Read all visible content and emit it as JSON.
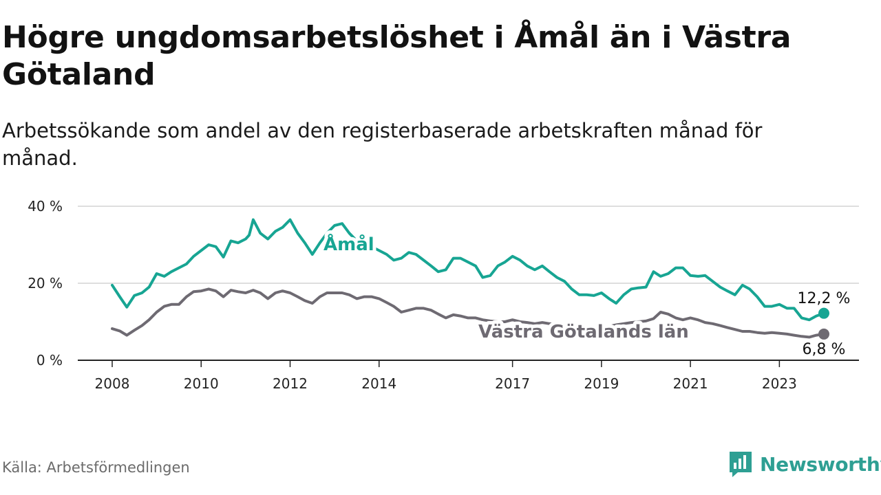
{
  "title": "Högre ungdomsarbetslöshet i Åmål än i Västra Götaland",
  "subtitle": "Arbetssökande som andel av den registerbaserade arbetskraften månad för månad.",
  "source": "Källa: Arbetsförmedlingen",
  "brand": "Newsworthy",
  "colors": {
    "amal": "#17a593",
    "vg": "#6e6a72",
    "grid": "#d4d4d4",
    "axis": "#222222",
    "brand": "#2e9f93"
  },
  "chart_data": {
    "type": "line",
    "title": "Högre ungdomsarbetslöshet i Åmål än i Västra Götaland",
    "xlabel": "",
    "ylabel": "",
    "xlim": [
      2007.9,
      2024.1
    ],
    "ylim": [
      0,
      40
    ],
    "y_ticks": [
      0,
      20,
      40
    ],
    "y_tick_labels": [
      "0 %",
      "20 %",
      "40 %"
    ],
    "x_ticks": [
      2008,
      2010,
      2012,
      2014,
      2017,
      2019,
      2021,
      2023
    ],
    "x_tick_labels": [
      "2008",
      "2010",
      "2012",
      "2014",
      "2017",
      "2019",
      "2021",
      "2023"
    ],
    "series": [
      {
        "name": "Åmål",
        "label": "Åmål",
        "end_label": "12,2 %",
        "points": [
          [
            2008.0,
            19.5
          ],
          [
            2008.17,
            16.5
          ],
          [
            2008.33,
            13.8
          ],
          [
            2008.5,
            16.8
          ],
          [
            2008.67,
            17.5
          ],
          [
            2008.83,
            19.0
          ],
          [
            2009.0,
            22.5
          ],
          [
            2009.17,
            21.8
          ],
          [
            2009.33,
            23.0
          ],
          [
            2009.5,
            24.0
          ],
          [
            2009.67,
            25.0
          ],
          [
            2009.83,
            27.0
          ],
          [
            2010.0,
            28.5
          ],
          [
            2010.17,
            30.0
          ],
          [
            2010.33,
            29.5
          ],
          [
            2010.5,
            26.8
          ],
          [
            2010.67,
            31.0
          ],
          [
            2010.83,
            30.5
          ],
          [
            2011.0,
            31.5
          ],
          [
            2011.08,
            32.5
          ],
          [
            2011.17,
            36.5
          ],
          [
            2011.33,
            33.0
          ],
          [
            2011.5,
            31.5
          ],
          [
            2011.67,
            33.5
          ],
          [
            2011.83,
            34.5
          ],
          [
            2012.0,
            36.5
          ],
          [
            2012.17,
            33.0
          ],
          [
            2012.33,
            30.5
          ],
          [
            2012.5,
            27.5
          ],
          [
            2012.67,
            30.5
          ],
          [
            2012.83,
            33.0
          ],
          [
            2013.0,
            35.0
          ],
          [
            2013.17,
            35.5
          ],
          [
            2013.33,
            33.0
          ],
          [
            2013.5,
            31.0
          ],
          [
            2013.67,
            30.0
          ],
          [
            2013.83,
            29.5
          ],
          [
            2014.0,
            28.5
          ],
          [
            2014.17,
            27.5
          ],
          [
            2014.33,
            26.0
          ],
          [
            2014.5,
            26.5
          ],
          [
            2014.67,
            28.0
          ],
          [
            2014.83,
            27.5
          ],
          [
            2015.0,
            26.0
          ],
          [
            2015.17,
            24.5
          ],
          [
            2015.33,
            23.0
          ],
          [
            2015.5,
            23.5
          ],
          [
            2015.67,
            26.5
          ],
          [
            2015.83,
            26.5
          ],
          [
            2016.0,
            25.5
          ],
          [
            2016.17,
            24.5
          ],
          [
            2016.33,
            21.5
          ],
          [
            2016.5,
            22.0
          ],
          [
            2016.67,
            24.5
          ],
          [
            2016.83,
            25.5
          ],
          [
            2017.0,
            27.0
          ],
          [
            2017.17,
            26.0
          ],
          [
            2017.33,
            24.5
          ],
          [
            2017.5,
            23.5
          ],
          [
            2017.67,
            24.5
          ],
          [
            2017.83,
            23.0
          ],
          [
            2018.0,
            21.5
          ],
          [
            2018.17,
            20.5
          ],
          [
            2018.33,
            18.5
          ],
          [
            2018.5,
            17.0
          ],
          [
            2018.67,
            17.0
          ],
          [
            2018.83,
            16.8
          ],
          [
            2019.0,
            17.5
          ],
          [
            2019.17,
            16.0
          ],
          [
            2019.33,
            14.8
          ],
          [
            2019.5,
            17.0
          ],
          [
            2019.67,
            18.5
          ],
          [
            2019.83,
            18.8
          ],
          [
            2020.0,
            19.0
          ],
          [
            2020.17,
            23.0
          ],
          [
            2020.33,
            21.8
          ],
          [
            2020.5,
            22.5
          ],
          [
            2020.67,
            24.0
          ],
          [
            2020.83,
            24.0
          ],
          [
            2021.0,
            22.0
          ],
          [
            2021.17,
            21.8
          ],
          [
            2021.33,
            22.0
          ],
          [
            2021.5,
            20.5
          ],
          [
            2021.67,
            19.0
          ],
          [
            2021.83,
            18.0
          ],
          [
            2022.0,
            17.0
          ],
          [
            2022.17,
            19.5
          ],
          [
            2022.33,
            18.5
          ],
          [
            2022.5,
            16.5
          ],
          [
            2022.67,
            14.0
          ],
          [
            2022.83,
            14.0
          ],
          [
            2023.0,
            14.5
          ],
          [
            2023.17,
            13.5
          ],
          [
            2023.33,
            13.5
          ],
          [
            2023.5,
            11.0
          ],
          [
            2023.67,
            10.5
          ],
          [
            2023.83,
            11.5
          ],
          [
            2024.0,
            12.2
          ]
        ]
      },
      {
        "name": "Västra Götalands län",
        "label": "Västra Götalands län",
        "end_label": "6,8 %",
        "points": [
          [
            2008.0,
            8.2
          ],
          [
            2008.17,
            7.6
          ],
          [
            2008.33,
            6.5
          ],
          [
            2008.5,
            7.8
          ],
          [
            2008.67,
            9.0
          ],
          [
            2008.83,
            10.5
          ],
          [
            2009.0,
            12.5
          ],
          [
            2009.17,
            14.0
          ],
          [
            2009.33,
            14.5
          ],
          [
            2009.5,
            14.5
          ],
          [
            2009.67,
            16.5
          ],
          [
            2009.83,
            17.8
          ],
          [
            2010.0,
            18.0
          ],
          [
            2010.17,
            18.5
          ],
          [
            2010.33,
            18.0
          ],
          [
            2010.5,
            16.5
          ],
          [
            2010.67,
            18.2
          ],
          [
            2010.83,
            17.8
          ],
          [
            2011.0,
            17.5
          ],
          [
            2011.17,
            18.2
          ],
          [
            2011.33,
            17.5
          ],
          [
            2011.5,
            16.0
          ],
          [
            2011.67,
            17.5
          ],
          [
            2011.83,
            18.0
          ],
          [
            2012.0,
            17.5
          ],
          [
            2012.17,
            16.5
          ],
          [
            2012.33,
            15.5
          ],
          [
            2012.5,
            14.8
          ],
          [
            2012.67,
            16.5
          ],
          [
            2012.83,
            17.5
          ],
          [
            2013.0,
            17.5
          ],
          [
            2013.17,
            17.5
          ],
          [
            2013.33,
            17.0
          ],
          [
            2013.5,
            16.0
          ],
          [
            2013.67,
            16.5
          ],
          [
            2013.83,
            16.5
          ],
          [
            2014.0,
            16.0
          ],
          [
            2014.17,
            15.0
          ],
          [
            2014.33,
            14.0
          ],
          [
            2014.5,
            12.5
          ],
          [
            2014.67,
            13.0
          ],
          [
            2014.83,
            13.5
          ],
          [
            2015.0,
            13.5
          ],
          [
            2015.17,
            13.0
          ],
          [
            2015.33,
            12.0
          ],
          [
            2015.5,
            11.0
          ],
          [
            2015.67,
            11.8
          ],
          [
            2015.83,
            11.5
          ],
          [
            2016.0,
            11.0
          ],
          [
            2016.17,
            11.0
          ],
          [
            2016.33,
            10.5
          ],
          [
            2016.5,
            10.2
          ],
          [
            2016.67,
            10.0
          ],
          [
            2016.83,
            10.0
          ],
          [
            2017.0,
            10.5
          ],
          [
            2017.17,
            10.0
          ],
          [
            2017.33,
            9.8
          ],
          [
            2017.5,
            9.5
          ],
          [
            2017.67,
            9.8
          ],
          [
            2017.83,
            9.5
          ],
          [
            2018.0,
            9.3
          ],
          [
            2018.17,
            9.0
          ],
          [
            2018.33,
            8.8
          ],
          [
            2018.5,
            8.8
          ],
          [
            2018.67,
            8.6
          ],
          [
            2018.83,
            8.5
          ],
          [
            2019.0,
            8.6
          ],
          [
            2019.17,
            8.8
          ],
          [
            2019.33,
            9.2
          ],
          [
            2019.5,
            9.5
          ],
          [
            2019.67,
            9.8
          ],
          [
            2019.83,
            10.0
          ],
          [
            2020.0,
            10.2
          ],
          [
            2020.17,
            10.8
          ],
          [
            2020.33,
            12.5
          ],
          [
            2020.5,
            12.0
          ],
          [
            2020.67,
            11.0
          ],
          [
            2020.83,
            10.5
          ],
          [
            2021.0,
            11.0
          ],
          [
            2021.17,
            10.5
          ],
          [
            2021.33,
            9.8
          ],
          [
            2021.5,
            9.5
          ],
          [
            2021.67,
            9.0
          ],
          [
            2021.83,
            8.5
          ],
          [
            2022.0,
            8.0
          ],
          [
            2022.17,
            7.5
          ],
          [
            2022.33,
            7.5
          ],
          [
            2022.5,
            7.2
          ],
          [
            2022.67,
            7.0
          ],
          [
            2022.83,
            7.2
          ],
          [
            2023.0,
            7.0
          ],
          [
            2023.17,
            6.8
          ],
          [
            2023.33,
            6.5
          ],
          [
            2023.5,
            6.2
          ],
          [
            2023.67,
            6.0
          ],
          [
            2023.83,
            6.5
          ],
          [
            2024.0,
            6.8
          ]
        ]
      }
    ]
  }
}
